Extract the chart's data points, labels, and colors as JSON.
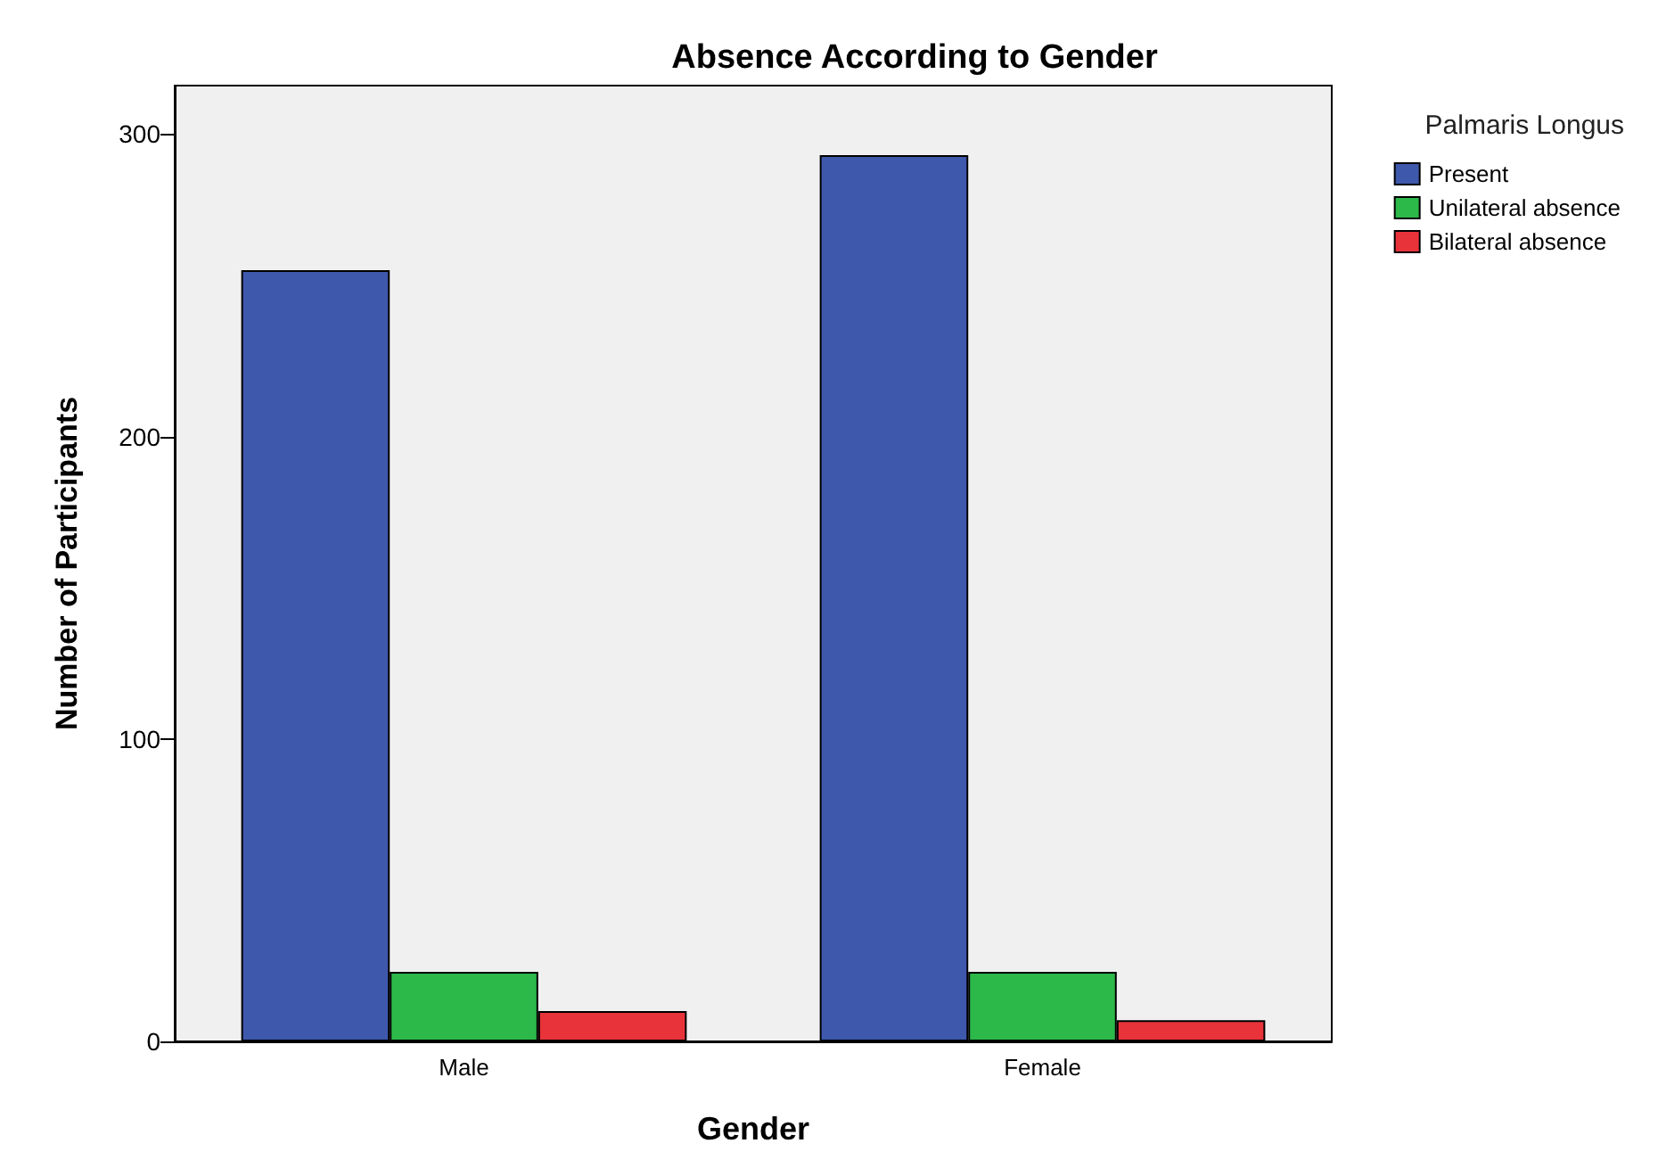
{
  "chart_data": {
    "type": "bar",
    "title": "Absence According to Gender",
    "xlabel": "Gender",
    "ylabel": "Number of Participants",
    "legend_title": "Palmaris Longus",
    "categories": [
      "Male",
      "Female"
    ],
    "series": [
      {
        "name": "Present",
        "color": "#3e58ac",
        "values": [
          255,
          293
        ]
      },
      {
        "name": "Unilateral absence",
        "color": "#2db84a",
        "values": [
          23,
          23
        ]
      },
      {
        "name": "Bilateral absence",
        "color": "#e8333a",
        "values": [
          10,
          7
        ]
      }
    ],
    "ylim": [
      0,
      316
    ],
    "yticks": [
      0,
      100,
      200,
      300
    ],
    "grid": false,
    "legend": "top right"
  }
}
